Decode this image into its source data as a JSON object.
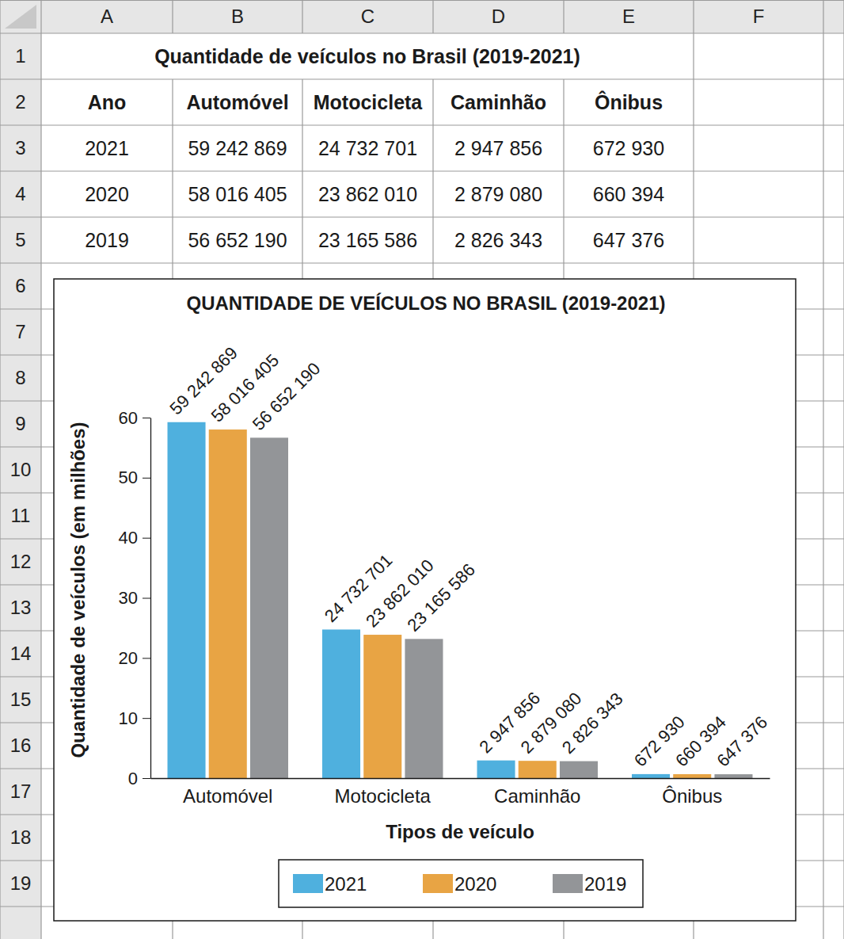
{
  "chart_data": {
    "type": "bar",
    "title": "QUANTIDADE DE VEÍCULOS NO BRASIL (2019-2021)",
    "x_label": "Tipos de veículo",
    "y_label": "Quantidade de veículos (em milhões)",
    "categories": [
      "Automóvel",
      "Motocicleta",
      "Caminhão",
      "Ônibus"
    ],
    "series": [
      {
        "name": "2021",
        "color": "#4fb0de",
        "values": [
          59.242869,
          24.732701,
          2.947856,
          0.67293
        ],
        "value_labels": [
          "59 242 869",
          "24 732 701",
          "2 947 856",
          "672 930"
        ]
      },
      {
        "name": "2020",
        "color": "#e8a444",
        "values": [
          58.016405,
          23.86201,
          2.87908,
          0.660394
        ],
        "value_labels": [
          "58 016 405",
          "23 862 010",
          "2 879 080",
          "660 394"
        ]
      },
      {
        "name": "2019",
        "color": "#939598",
        "values": [
          56.65219,
          23.165586,
          2.826343,
          0.647376
        ],
        "value_labels": [
          "56 652 190",
          "23 165 586",
          "2 826 343",
          "647 376"
        ]
      }
    ],
    "ylim": [
      0,
      60
    ],
    "yticks": [
      0,
      10,
      20,
      30,
      40,
      50,
      60
    ],
    "grid": false,
    "legend": "bottom",
    "data_labels": true
  },
  "sheet": {
    "column_headers": [
      "A",
      "B",
      "C",
      "D",
      "E",
      "F"
    ],
    "row_headers": [
      "1",
      "2",
      "3",
      "4",
      "5",
      "6",
      "7",
      "8",
      "9",
      "10",
      "11",
      "12",
      "13",
      "14",
      "15",
      "16",
      "17",
      "18",
      "19"
    ],
    "title": "Quantidade de veículos no Brasil (2019-2021)",
    "header": [
      "Ano",
      "Automóvel",
      "Motocicleta",
      "Caminhão",
      "Ônibus"
    ],
    "rows": [
      [
        "2021",
        "59 242 869",
        "24 732 701",
        "2 947 856",
        "672 930"
      ],
      [
        "2020",
        "58 016 405",
        "23 862 010",
        "2 879 080",
        "660 394"
      ],
      [
        "2019",
        "56 652 190",
        "23 165 586",
        "2 826 343",
        "647 376"
      ]
    ]
  }
}
